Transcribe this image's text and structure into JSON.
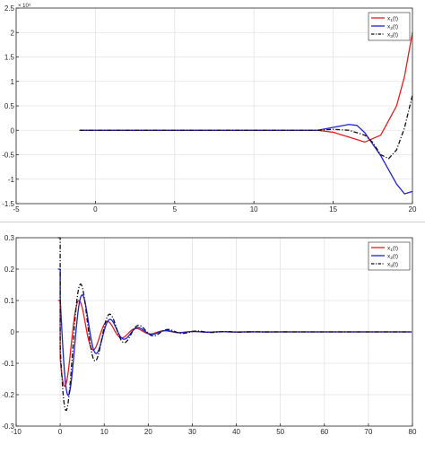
{
  "chart_data": [
    {
      "type": "line",
      "title": "",
      "xlabel": "",
      "ylabel": "",
      "xlim": [
        -5,
        20
      ],
      "ylim": [
        -1.5,
        2.5
      ],
      "y_exponent": "× 10⁵",
      "grid": true,
      "legend_position": "top-right",
      "x_ticks": [
        "-5",
        "0",
        "5",
        "10",
        "15",
        "20"
      ],
      "y_ticks": [
        "-1.5",
        "-1",
        "-0.5",
        "0",
        "0.5",
        "1",
        "1.5",
        "2",
        "2.5"
      ],
      "series": [
        {
          "name": "x1(t)",
          "label": "x",
          "sub": "1",
          "suffix": "(t)",
          "color": "#e02020",
          "dash": "solid",
          "x": [
            -1,
            14,
            15,
            16,
            17,
            18,
            19,
            19.5,
            20
          ],
          "y": [
            0,
            0,
            -0.04,
            -0.14,
            -0.24,
            -0.1,
            0.5,
            1.1,
            2.0
          ]
        },
        {
          "name": "x2(t)",
          "label": "x",
          "sub": "2",
          "suffix": "(t)",
          "color": "#2020d0",
          "dash": "solid",
          "x": [
            -1,
            14,
            15,
            16,
            16.5,
            17,
            18,
            19,
            19.5,
            20
          ],
          "y": [
            0,
            0,
            0.06,
            0.12,
            0.1,
            -0.05,
            -0.52,
            -1.1,
            -1.3,
            -1.25
          ]
        },
        {
          "name": "x3(t)",
          "label": "x",
          "sub": "3",
          "suffix": "(t)",
          "color": "#111111",
          "dash": "dashdot",
          "x": [
            -1,
            14,
            15,
            16,
            17,
            17.5,
            18,
            18.5,
            19,
            19.5,
            20
          ],
          "y": [
            0,
            0,
            0.02,
            0.0,
            -0.1,
            -0.25,
            -0.5,
            -0.58,
            -0.4,
            0.05,
            0.72
          ]
        }
      ]
    },
    {
      "type": "line",
      "title": "",
      "xlabel": "",
      "ylabel": "",
      "xlim": [
        -10,
        80
      ],
      "ylim": [
        -0.3,
        0.3
      ],
      "grid": true,
      "legend_position": "top-right",
      "x_ticks": [
        "-10",
        "0",
        "10",
        "20",
        "30",
        "40",
        "50",
        "60",
        "70",
        "80"
      ],
      "y_ticks": [
        "-0.3",
        "-0.2",
        "-0.1",
        "0",
        "0.1",
        "0.2",
        "0.3"
      ],
      "series": [
        {
          "name": "x1(t)",
          "label": "x",
          "sub": "1",
          "suffix": "(t)",
          "color": "#e02020",
          "dash": "solid",
          "amp": 0.21,
          "phase": 0.4,
          "decay": 0.17,
          "omega": 0.97,
          "init": 0.1,
          "t_init": -0.5
        },
        {
          "name": "x2(t)",
          "label": "x",
          "sub": "2",
          "suffix": "(t)",
          "color": "#2020d0",
          "dash": "solid",
          "amp": 0.28,
          "phase": -0.4,
          "decay": 0.17,
          "omega": 0.99,
          "init": 0.2,
          "t_init": -0.5
        },
        {
          "name": "x3(t)",
          "label": "x",
          "sub": "3",
          "suffix": "(t)",
          "color": "#111111",
          "dash": "dashdot",
          "amp": 0.31,
          "phase": 0.15,
          "decay": 0.15,
          "omega": 0.95,
          "init": 0.3,
          "t_init": -0.5
        }
      ]
    }
  ]
}
